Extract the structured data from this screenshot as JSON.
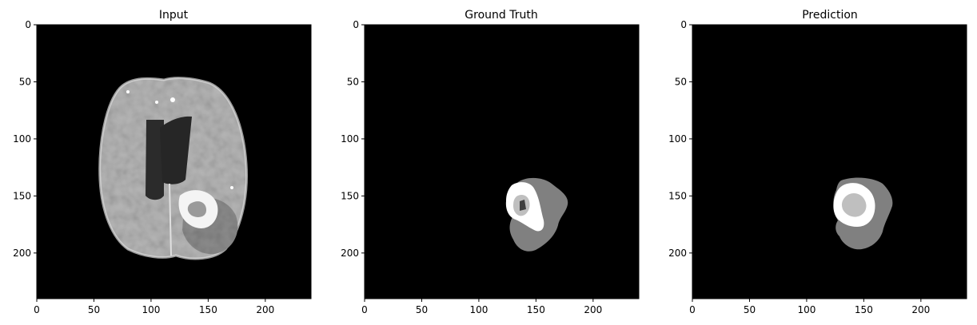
{
  "figure": {
    "panels": [
      {
        "title": "Input",
        "content": "brain MRI slice (T1-contrast) with tumor region, grayscale"
      },
      {
        "title": "Ground Truth",
        "content": "segmentation mask: gray edema, white enhancing tumor, light gray core"
      },
      {
        "title": "Prediction",
        "content": "predicted segmentation mask: gray edema, white enhancing tumor, light gray core"
      }
    ],
    "x_ticks": [
      "0",
      "50",
      "100",
      "150",
      "200"
    ],
    "y_ticks": [
      "0",
      "50",
      "100",
      "150",
      "200"
    ],
    "image_extent": [
      0,
      240
    ],
    "colors": {
      "background": "#000000",
      "edema": "#808080",
      "enhancing": "#ffffff",
      "core": "#bfbfbf",
      "brain": "#b4b4b4",
      "ventricle": "#2e2e2e"
    }
  }
}
